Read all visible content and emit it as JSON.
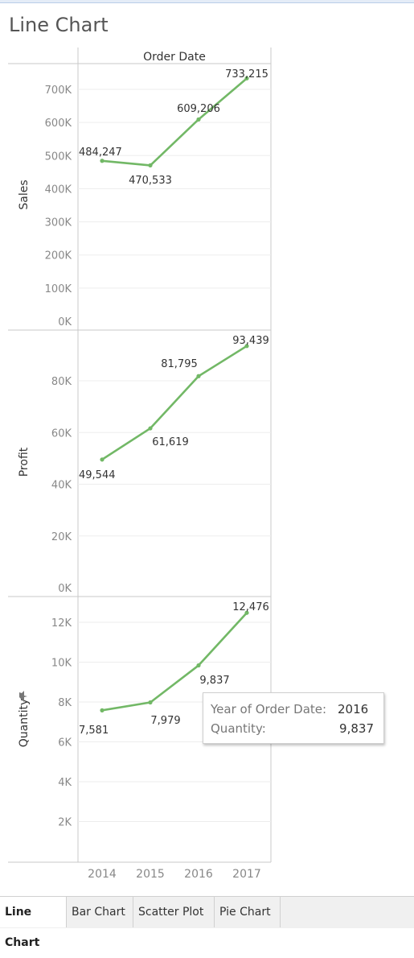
{
  "title": "Line Chart",
  "chart_data": {
    "type": "line",
    "column_header": "Order Date",
    "x": [
      "2014",
      "2015",
      "2016",
      "2017"
    ],
    "color": "#72b866",
    "panes": [
      {
        "name": "Sales",
        "ylabel": "Sales",
        "values": [
          484247,
          470533,
          609206,
          733215
        ],
        "labels": [
          "484,247",
          "470,533",
          "609,206",
          "733,215"
        ],
        "ylim": [
          0,
          750000
        ],
        "ticks": [
          0,
          100000,
          200000,
          300000,
          400000,
          500000,
          600000,
          700000
        ],
        "tick_labels": [
          "0K",
          "100K",
          "200K",
          "300K",
          "400K",
          "500K",
          "600K",
          "700K"
        ]
      },
      {
        "name": "Profit",
        "ylabel": "Profit",
        "values": [
          49544,
          61619,
          81795,
          93439
        ],
        "labels": [
          "49,544",
          "61,619",
          "81,795",
          "93,439"
        ],
        "ylim": [
          0,
          95000
        ],
        "ticks": [
          0,
          20000,
          40000,
          60000,
          80000
        ],
        "tick_labels": [
          "0K",
          "20K",
          "40K",
          "60K",
          "80K"
        ]
      },
      {
        "name": "Quantity",
        "ylabel": "Quantity",
        "values": [
          7581,
          7979,
          9837,
          12476
        ],
        "labels": [
          "7,581",
          "7,979",
          "9,837",
          "12,476"
        ],
        "ylim": [
          0,
          12500
        ],
        "ticks": [
          2000,
          4000,
          6000,
          8000,
          10000,
          12000
        ],
        "tick_labels": [
          "2K",
          "4K",
          "6K",
          "8K",
          "10K",
          "12K"
        ]
      }
    ],
    "gridlines": true
  },
  "tooltip": {
    "key1": "Year of Order Date:",
    "val1": "2016",
    "key2": "Quantity:",
    "val2": "9,837"
  },
  "tabs": [
    {
      "label": "Line Chart",
      "active": true
    },
    {
      "label": "Bar Chart",
      "active": false
    },
    {
      "label": "Scatter Plot",
      "active": false
    },
    {
      "label": "Pie Chart",
      "active": false
    }
  ]
}
